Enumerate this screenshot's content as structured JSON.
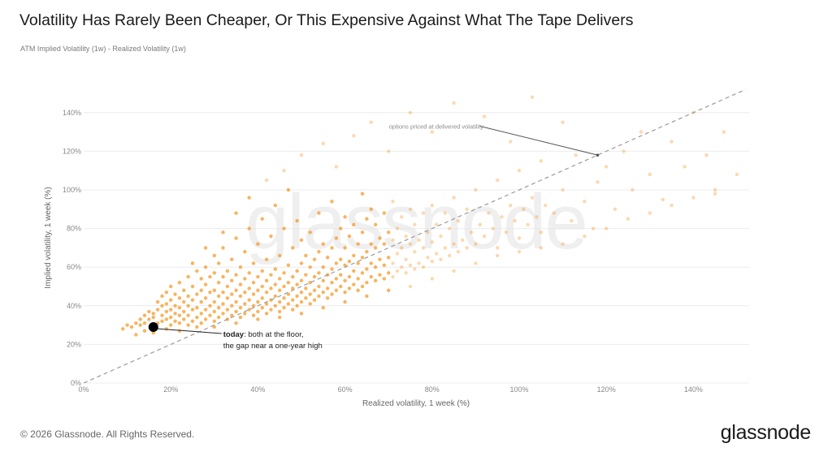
{
  "chart_data": {
    "type": "scatter",
    "title": "Volatility Has Rarely Been Cheaper, Or This Expensive Against What The Tape Delivers",
    "subtitle": "ATM Implied Volatility (1w) - Realized Volatility (1w)",
    "xlabel": "Realized volatility, 1 week (%)",
    "ylabel": "Implied volatility, 1 week (%)",
    "xlim": [
      0,
      152
    ],
    "ylim": [
      0,
      150
    ],
    "x_ticks": [
      0,
      20,
      40,
      60,
      80,
      100,
      120,
      140
    ],
    "y_ticks": [
      0,
      20,
      40,
      60,
      80,
      100,
      120,
      140
    ],
    "x_tick_labels": [
      "0%",
      "20%",
      "40%",
      "60%",
      "80%",
      "100%",
      "120%",
      "140%"
    ],
    "y_tick_labels": [
      "0%",
      "20%",
      "40%",
      "60%",
      "80%",
      "100%",
      "120%",
      "140%"
    ],
    "grid": {
      "horizontal": true,
      "vertical": false
    },
    "point_color": "#f7931a",
    "reference_line": {
      "slope": 1,
      "intercept": 0,
      "style": "dashed",
      "color": "#9a9a9a"
    },
    "highlight": {
      "x": 16,
      "y": 29,
      "color": "#000000"
    },
    "annotations": {
      "ref": {
        "text": "options priced at delivered volatility",
        "x_from": 91,
        "y_from": 133,
        "x_to": 118,
        "y_to": 118
      },
      "today_bold": "today",
      "today_line1": ": both at the floor,",
      "today_line2": "the gap near a one-year high"
    },
    "watermark": "glassnode",
    "points": [
      [
        9,
        28
      ],
      [
        10,
        30
      ],
      [
        11,
        29
      ],
      [
        12,
        31
      ],
      [
        13,
        30
      ],
      [
        13,
        33
      ],
      [
        14,
        31
      ],
      [
        14,
        35
      ],
      [
        15,
        33
      ],
      [
        15,
        37
      ],
      [
        16,
        34
      ],
      [
        16,
        36
      ],
      [
        17,
        31
      ],
      [
        17,
        38
      ],
      [
        17,
        42
      ],
      [
        18,
        32
      ],
      [
        18,
        35
      ],
      [
        18,
        40
      ],
      [
        18,
        45
      ],
      [
        19,
        33
      ],
      [
        19,
        37
      ],
      [
        19,
        41
      ],
      [
        19,
        47
      ],
      [
        20,
        30
      ],
      [
        20,
        34
      ],
      [
        20,
        38
      ],
      [
        20,
        43
      ],
      [
        20,
        50
      ],
      [
        21,
        32
      ],
      [
        21,
        36
      ],
      [
        21,
        40
      ],
      [
        21,
        46
      ],
      [
        22,
        31
      ],
      [
        22,
        35
      ],
      [
        22,
        39
      ],
      [
        22,
        44
      ],
      [
        22,
        52
      ],
      [
        23,
        33
      ],
      [
        23,
        37
      ],
      [
        23,
        42
      ],
      [
        23,
        48
      ],
      [
        24,
        30
      ],
      [
        24,
        35
      ],
      [
        24,
        40
      ],
      [
        24,
        45
      ],
      [
        24,
        55
      ],
      [
        25,
        32
      ],
      [
        25,
        38
      ],
      [
        25,
        43
      ],
      [
        25,
        50
      ],
      [
        26,
        34
      ],
      [
        26,
        39
      ],
      [
        26,
        46
      ],
      [
        26,
        58
      ],
      [
        27,
        31
      ],
      [
        27,
        36
      ],
      [
        27,
        42
      ],
      [
        27,
        48
      ],
      [
        27,
        54
      ],
      [
        28,
        33
      ],
      [
        28,
        38
      ],
      [
        28,
        44
      ],
      [
        28,
        51
      ],
      [
        28,
        60
      ],
      [
        29,
        35
      ],
      [
        29,
        40
      ],
      [
        29,
        47
      ],
      [
        29,
        55
      ],
      [
        30,
        32
      ],
      [
        30,
        37
      ],
      [
        30,
        42
      ],
      [
        30,
        48
      ],
      [
        30,
        57
      ],
      [
        30,
        66
      ],
      [
        31,
        34
      ],
      [
        31,
        39
      ],
      [
        31,
        45
      ],
      [
        31,
        52
      ],
      [
        31,
        62
      ],
      [
        32,
        36
      ],
      [
        32,
        41
      ],
      [
        32,
        47
      ],
      [
        32,
        55
      ],
      [
        32,
        70
      ],
      [
        33,
        33
      ],
      [
        33,
        38
      ],
      [
        33,
        44
      ],
      [
        33,
        50
      ],
      [
        33,
        58
      ],
      [
        34,
        35
      ],
      [
        34,
        40
      ],
      [
        34,
        46
      ],
      [
        34,
        53
      ],
      [
        34,
        64
      ],
      [
        35,
        37
      ],
      [
        35,
        42
      ],
      [
        35,
        48
      ],
      [
        35,
        56
      ],
      [
        35,
        75
      ],
      [
        36,
        34
      ],
      [
        36,
        39
      ],
      [
        36,
        45
      ],
      [
        36,
        51
      ],
      [
        36,
        60
      ],
      [
        37,
        36
      ],
      [
        37,
        41
      ],
      [
        37,
        47
      ],
      [
        37,
        54
      ],
      [
        37,
        68
      ],
      [
        38,
        38
      ],
      [
        38,
        43
      ],
      [
        38,
        49
      ],
      [
        38,
        57
      ],
      [
        38,
        80
      ],
      [
        39,
        35
      ],
      [
        39,
        40
      ],
      [
        39,
        46
      ],
      [
        39,
        52
      ],
      [
        39,
        62
      ],
      [
        40,
        37
      ],
      [
        40,
        42
      ],
      [
        40,
        48
      ],
      [
        40,
        55
      ],
      [
        40,
        72
      ],
      [
        41,
        39
      ],
      [
        41,
        44
      ],
      [
        41,
        50
      ],
      [
        41,
        58
      ],
      [
        41,
        85
      ],
      [
        42,
        36
      ],
      [
        42,
        41
      ],
      [
        42,
        47
      ],
      [
        42,
        53
      ],
      [
        42,
        64
      ],
      [
        43,
        38
      ],
      [
        43,
        43
      ],
      [
        43,
        49
      ],
      [
        43,
        56
      ],
      [
        43,
        76
      ],
      [
        44,
        40
      ],
      [
        44,
        45
      ],
      [
        44,
        51
      ],
      [
        44,
        59
      ],
      [
        44,
        92
      ],
      [
        45,
        37
      ],
      [
        45,
        42
      ],
      [
        45,
        48
      ],
      [
        45,
        54
      ],
      [
        45,
        66
      ],
      [
        46,
        39
      ],
      [
        46,
        44
      ],
      [
        46,
        50
      ],
      [
        46,
        57
      ],
      [
        46,
        80
      ],
      [
        47,
        41
      ],
      [
        47,
        46
      ],
      [
        47,
        52
      ],
      [
        47,
        61
      ],
      [
        47,
        100
      ],
      [
        48,
        38
      ],
      [
        48,
        43
      ],
      [
        48,
        49
      ],
      [
        48,
        55
      ],
      [
        48,
        70
      ],
      [
        49,
        40
      ],
      [
        49,
        45
      ],
      [
        49,
        51
      ],
      [
        49,
        58
      ],
      [
        49,
        84
      ],
      [
        50,
        42
      ],
      [
        50,
        47
      ],
      [
        50,
        53
      ],
      [
        50,
        62
      ],
      [
        50,
        74
      ],
      [
        51,
        44
      ],
      [
        51,
        49
      ],
      [
        51,
        56
      ],
      [
        51,
        66
      ],
      [
        52,
        41
      ],
      [
        52,
        46
      ],
      [
        52,
        52
      ],
      [
        52,
        60
      ],
      [
        52,
        78
      ],
      [
        53,
        43
      ],
      [
        53,
        48
      ],
      [
        53,
        55
      ],
      [
        53,
        64
      ],
      [
        54,
        45
      ],
      [
        54,
        50
      ],
      [
        54,
        57
      ],
      [
        54,
        68
      ],
      [
        54,
        88
      ],
      [
        55,
        47
      ],
      [
        55,
        53
      ],
      [
        55,
        60
      ],
      [
        55,
        72
      ],
      [
        56,
        44
      ],
      [
        56,
        49
      ],
      [
        56,
        56
      ],
      [
        56,
        65
      ],
      [
        57,
        46
      ],
      [
        57,
        52
      ],
      [
        57,
        59
      ],
      [
        57,
        70
      ],
      [
        57,
        94
      ],
      [
        58,
        48
      ],
      [
        58,
        54
      ],
      [
        58,
        62
      ],
      [
        58,
        75
      ],
      [
        59,
        50
      ],
      [
        59,
        56
      ],
      [
        59,
        64
      ],
      [
        59,
        80
      ],
      [
        60,
        47
      ],
      [
        60,
        53
      ],
      [
        60,
        61
      ],
      [
        60,
        70
      ],
      [
        60,
        86
      ],
      [
        61,
        49
      ],
      [
        61,
        55
      ],
      [
        61,
        63
      ],
      [
        61,
        76
      ],
      [
        62,
        51
      ],
      [
        62,
        58
      ],
      [
        62,
        66
      ],
      [
        62,
        82
      ],
      [
        63,
        48
      ],
      [
        63,
        54
      ],
      [
        63,
        62
      ],
      [
        63,
        72
      ],
      [
        64,
        50
      ],
      [
        64,
        57
      ],
      [
        64,
        65
      ],
      [
        64,
        78
      ],
      [
        64,
        98
      ],
      [
        65,
        52
      ],
      [
        65,
        59
      ],
      [
        65,
        68
      ],
      [
        65,
        85
      ],
      [
        66,
        55
      ],
      [
        66,
        62
      ],
      [
        66,
        72
      ],
      [
        66,
        90
      ],
      [
        67,
        53
      ],
      [
        67,
        60
      ],
      [
        67,
        70
      ],
      [
        67,
        82
      ],
      [
        68,
        56
      ],
      [
        68,
        64
      ],
      [
        68,
        75
      ],
      [
        69,
        54
      ],
      [
        69,
        61
      ],
      [
        69,
        72
      ],
      [
        69,
        88
      ],
      [
        70,
        57
      ],
      [
        70,
        65
      ],
      [
        70,
        78
      ],
      [
        71,
        55
      ],
      [
        71,
        62
      ],
      [
        71,
        74
      ],
      [
        71,
        94
      ],
      [
        72,
        58
      ],
      [
        72,
        67
      ],
      [
        72,
        80
      ],
      [
        73,
        60
      ],
      [
        73,
        70
      ],
      [
        73,
        86
      ],
      [
        74,
        57
      ],
      [
        74,
        64
      ],
      [
        74,
        76
      ],
      [
        75,
        61
      ],
      [
        75,
        72
      ],
      [
        75,
        90
      ],
      [
        76,
        59
      ],
      [
        76,
        68
      ],
      [
        76,
        82
      ],
      [
        77,
        62
      ],
      [
        77,
        74
      ],
      [
        78,
        60
      ],
      [
        78,
        70
      ],
      [
        78,
        88
      ],
      [
        79,
        65
      ],
      [
        79,
        78
      ],
      [
        80,
        63
      ],
      [
        80,
        73
      ],
      [
        80,
        92
      ],
      [
        81,
        67
      ],
      [
        81,
        82
      ],
      [
        82,
        64
      ],
      [
        82,
        76
      ],
      [
        83,
        70
      ],
      [
        83,
        88
      ],
      [
        84,
        66
      ],
      [
        84,
        80
      ],
      [
        85,
        72
      ],
      [
        85,
        96
      ],
      [
        86,
        68
      ],
      [
        86,
        84
      ],
      [
        87,
        74
      ],
      [
        88,
        70
      ],
      [
        88,
        90
      ],
      [
        89,
        78
      ],
      [
        90,
        72
      ],
      [
        90,
        100
      ],
      [
        91,
        82
      ],
      [
        92,
        76
      ],
      [
        93,
        88
      ],
      [
        94,
        80
      ],
      [
        95,
        70
      ],
      [
        95,
        105
      ],
      [
        96,
        86
      ],
      [
        97,
        78
      ],
      [
        98,
        92
      ],
      [
        99,
        84
      ],
      [
        100,
        75
      ],
      [
        100,
        110
      ],
      [
        101,
        90
      ],
      [
        102,
        82
      ],
      [
        103,
        96
      ],
      [
        104,
        86
      ],
      [
        105,
        78
      ],
      [
        105,
        115
      ],
      [
        106,
        92
      ],
      [
        108,
        88
      ],
      [
        110,
        100
      ],
      [
        112,
        84
      ],
      [
        113,
        118
      ],
      [
        115,
        94
      ],
      [
        117,
        80
      ],
      [
        118,
        104
      ],
      [
        120,
        112
      ],
      [
        122,
        90
      ],
      [
        124,
        120
      ],
      [
        126,
        100
      ],
      [
        128,
        130
      ],
      [
        130,
        108
      ],
      [
        133,
        95
      ],
      [
        135,
        125
      ],
      [
        138,
        112
      ],
      [
        140,
        140
      ],
      [
        143,
        118
      ],
      [
        145,
        100
      ],
      [
        147,
        130
      ],
      [
        150,
        108
      ],
      [
        25,
        62
      ],
      [
        28,
        70
      ],
      [
        32,
        78
      ],
      [
        35,
        88
      ],
      [
        38,
        96
      ],
      [
        42,
        105
      ],
      [
        46,
        110
      ],
      [
        50,
        118
      ],
      [
        55,
        124
      ],
      [
        58,
        112
      ],
      [
        62,
        128
      ],
      [
        66,
        135
      ],
      [
        70,
        120
      ],
      [
        75,
        140
      ],
      [
        80,
        130
      ],
      [
        85,
        145
      ],
      [
        92,
        138
      ],
      [
        98,
        125
      ],
      [
        103,
        148
      ],
      [
        110,
        135
      ],
      [
        12,
        25
      ],
      [
        14,
        27
      ],
      [
        16,
        26
      ],
      [
        19,
        28
      ],
      [
        22,
        27
      ],
      [
        26,
        29
      ],
      [
        30,
        29
      ],
      [
        35,
        31
      ],
      [
        40,
        33
      ],
      [
        45,
        34
      ],
      [
        50,
        36
      ],
      [
        55,
        39
      ],
      [
        60,
        42
      ],
      [
        65,
        45
      ],
      [
        70,
        48
      ],
      [
        75,
        50
      ],
      [
        80,
        54
      ],
      [
        85,
        58
      ],
      [
        90,
        62
      ],
      [
        95,
        66
      ],
      [
        100,
        68
      ],
      [
        105,
        70
      ],
      [
        110,
        72
      ],
      [
        115,
        76
      ],
      [
        120,
        80
      ],
      [
        125,
        85
      ],
      [
        130,
        88
      ],
      [
        135,
        92
      ],
      [
        140,
        96
      ],
      [
        145,
        98
      ]
    ]
  },
  "footer": {
    "copyright": "© 2026 Glassnode. All Rights Reserved."
  },
  "brand": {
    "logo_text": "glassnode"
  }
}
